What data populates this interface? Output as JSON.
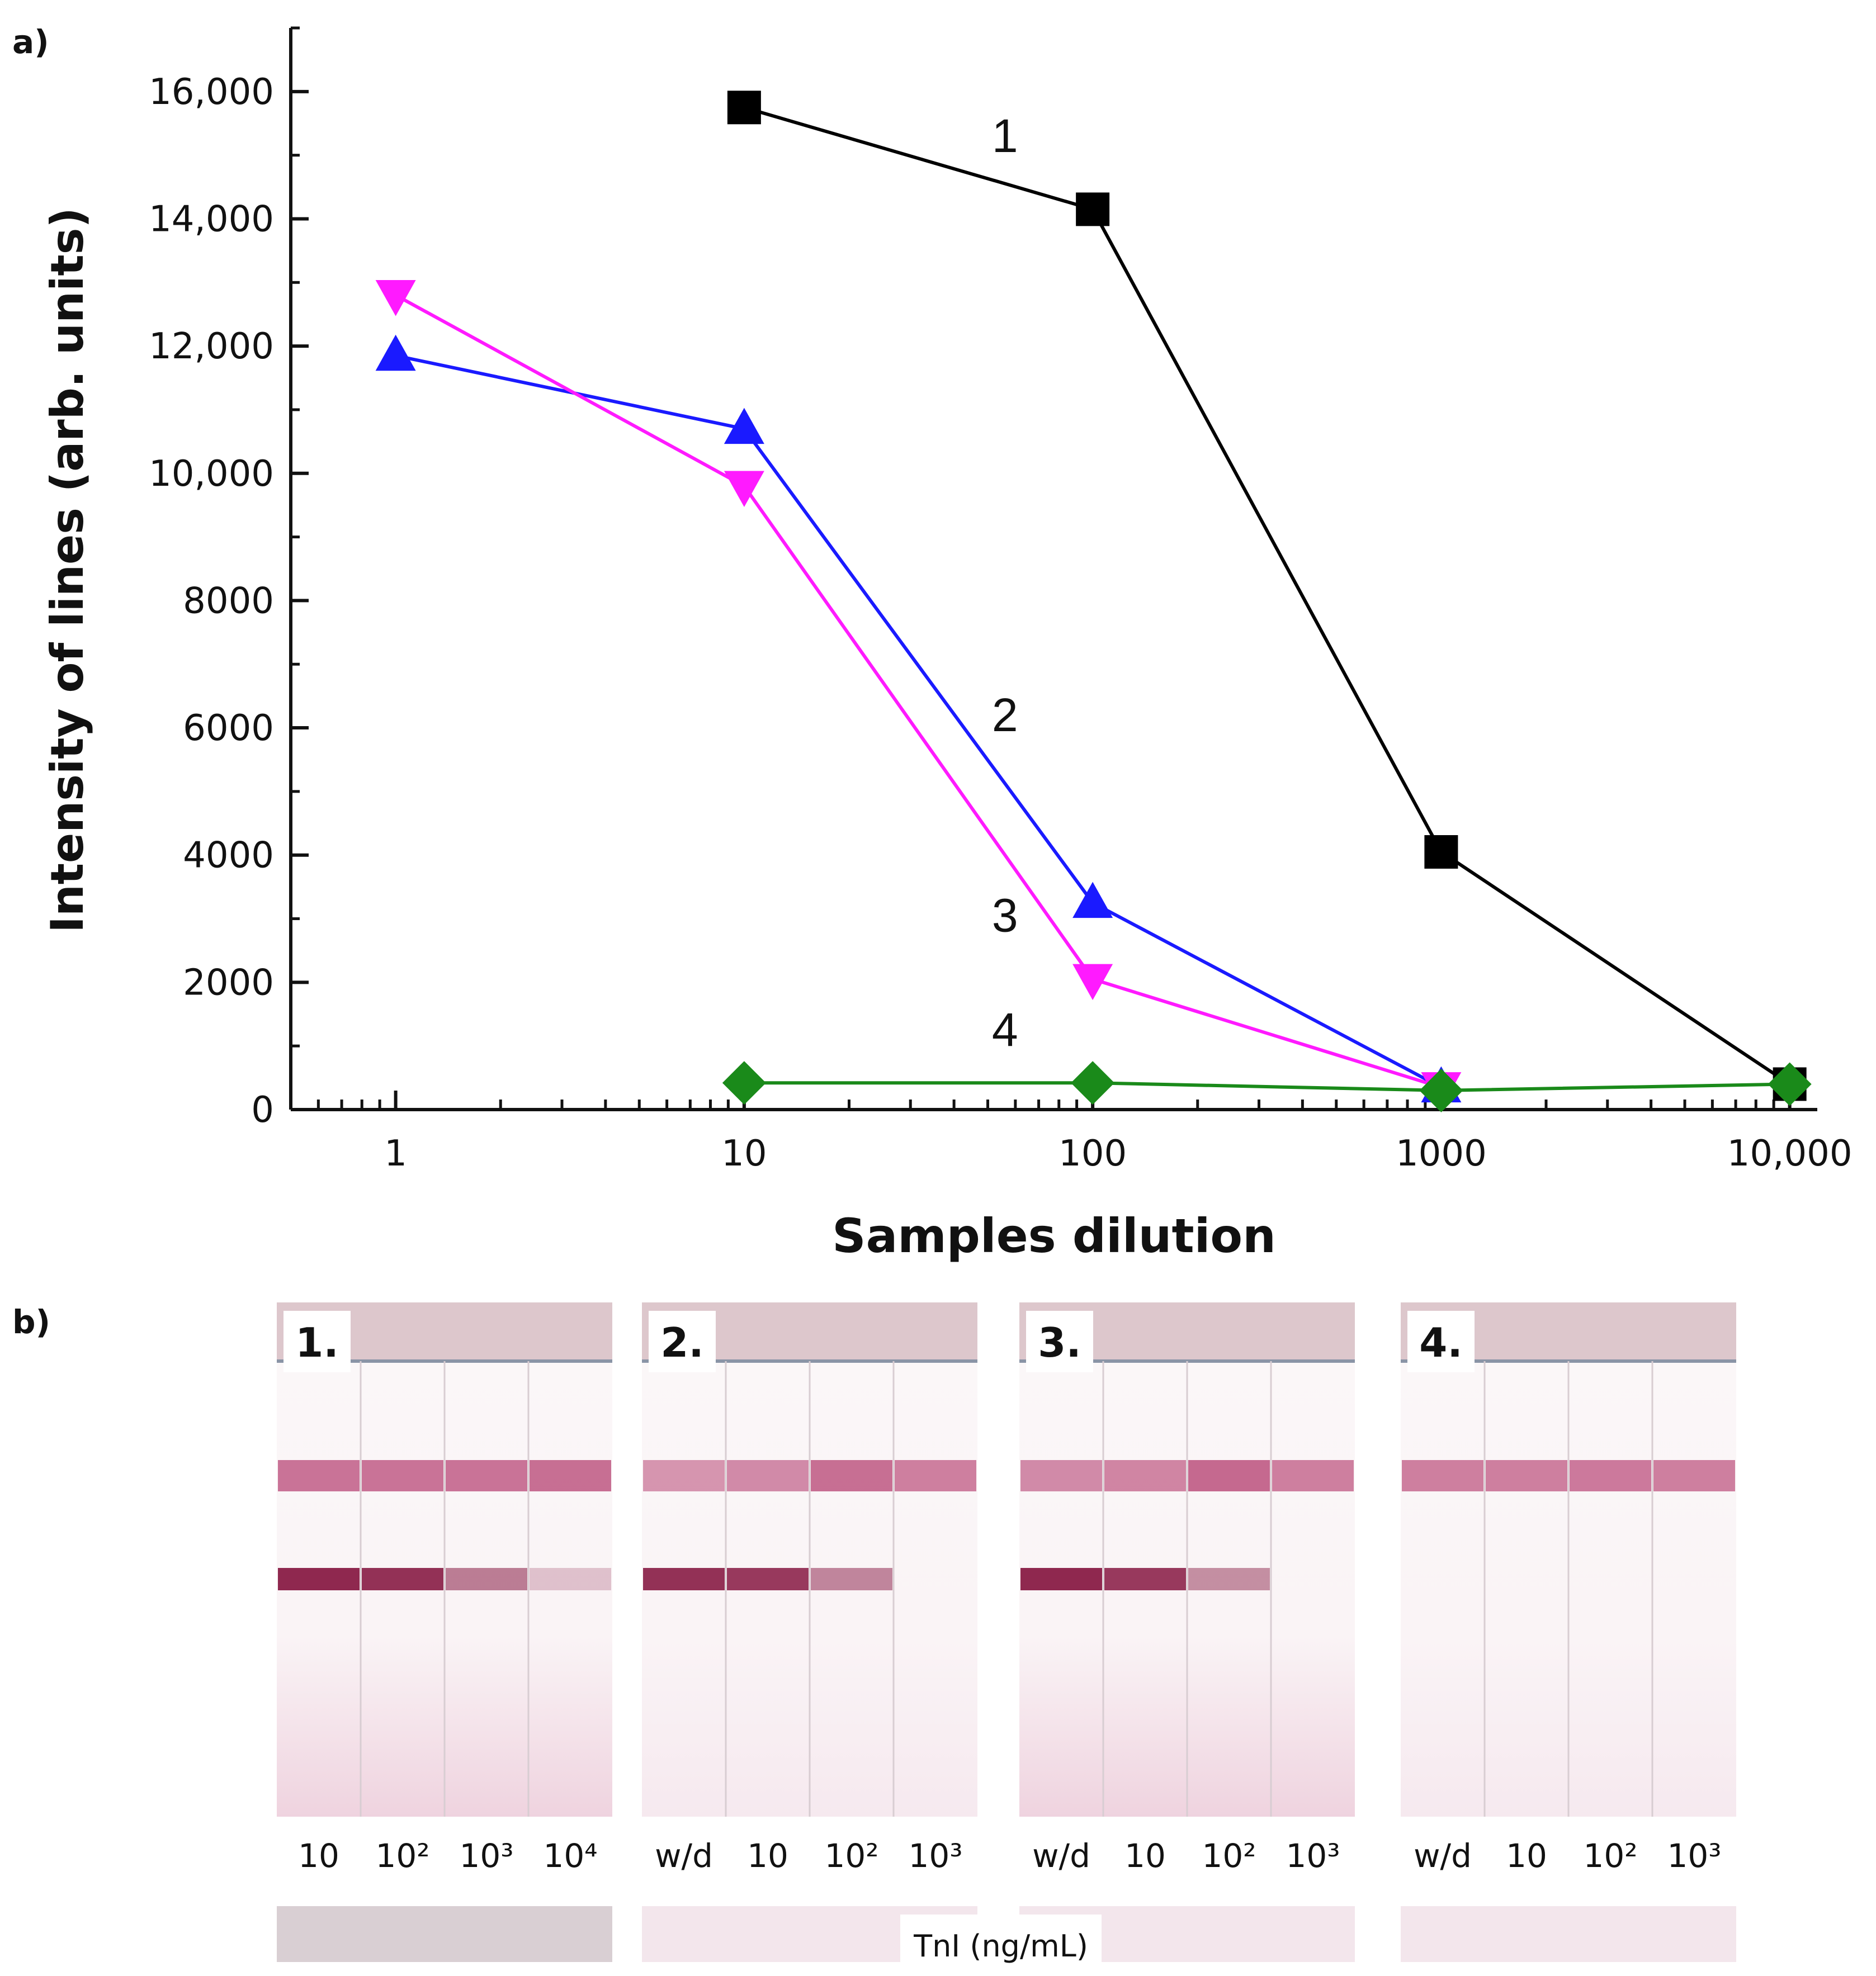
{
  "panel_labels": {
    "a": "a)",
    "b": "b)"
  },
  "chart_data": {
    "type": "line",
    "xscale": "log",
    "xlim": [
      0.5,
      12000
    ],
    "ylim": [
      0,
      17000
    ],
    "xlabel": "Samples dilution",
    "ylabel": "Intensity of lines (arb. units)",
    "xticks": [
      {
        "value": 1,
        "label": "1"
      },
      {
        "value": 10,
        "label": "10"
      },
      {
        "value": 100,
        "label": "100"
      },
      {
        "value": 1000,
        "label": "1000"
      },
      {
        "value": 10000,
        "label": "10,000"
      }
    ],
    "yticks": [
      {
        "value": 0,
        "label": "0"
      },
      {
        "value": 2000,
        "label": "2000"
      },
      {
        "value": 4000,
        "label": "4000"
      },
      {
        "value": 6000,
        "label": "6000"
      },
      {
        "value": 8000,
        "label": "8000"
      },
      {
        "value": 10000,
        "label": "10,000"
      },
      {
        "value": 12000,
        "label": "12,000"
      },
      {
        "value": 14000,
        "label": "14,000"
      },
      {
        "value": 16000,
        "label": "16,000"
      }
    ],
    "series": [
      {
        "name": "1",
        "color": "#000000",
        "marker": "square",
        "x": [
          10,
          100,
          1000,
          10000
        ],
        "y": [
          15750,
          14150,
          4050,
          400
        ],
        "label_at": {
          "x": 56,
          "y": 15050
        }
      },
      {
        "name": "2",
        "color": "#1a1aff",
        "marker": "triangle-up",
        "x": [
          1,
          10,
          100,
          1000
        ],
        "y": [
          11850,
          10700,
          3250,
          350
        ],
        "label_at": {
          "x": 56,
          "y": 5950
        }
      },
      {
        "name": "3",
        "color": "#ff1aff",
        "marker": "triangle-down",
        "x": [
          1,
          10,
          100,
          1000
        ],
        "y": [
          12800,
          9800,
          2050,
          350
        ],
        "label_at": {
          "x": 56,
          "y": 2800
        }
      },
      {
        "name": "4",
        "color": "#1a8a1a",
        "marker": "diamond",
        "x": [
          10,
          100,
          1000,
          10000
        ],
        "y": [
          420,
          420,
          300,
          400
        ],
        "label_at": {
          "x": 56,
          "y": 1000
        }
      }
    ]
  },
  "strips": [
    {
      "number": "1.",
      "lanes": [
        "10",
        "10²",
        "10³",
        "10⁴"
      ],
      "control_intensity": [
        0.75,
        0.75,
        0.75,
        0.8
      ],
      "test_intensity": [
        0.95,
        0.9,
        0.45,
        0.05
      ]
    },
    {
      "number": "2.",
      "lanes": [
        "w/d",
        "10",
        "10²",
        "10³"
      ],
      "control_intensity": [
        0.45,
        0.55,
        0.8,
        0.65
      ],
      "test_intensity": [
        0.9,
        0.85,
        0.4,
        0.0
      ]
    },
    {
      "number": "3.",
      "lanes": [
        "w/d",
        "10",
        "10²",
        "10³"
      ],
      "control_intensity": [
        0.55,
        0.6,
        0.85,
        0.65
      ],
      "test_intensity": [
        0.95,
        0.85,
        0.35,
        0.0
      ]
    },
    {
      "number": "4.",
      "lanes": [
        "w/d",
        "10",
        "10²",
        "10³"
      ],
      "control_intensity": [
        0.65,
        0.65,
        0.7,
        0.65
      ],
      "test_intensity": [
        0.0,
        0.0,
        0.0,
        0.0
      ]
    }
  ],
  "strips_caption": "TnI (ng/mL)"
}
